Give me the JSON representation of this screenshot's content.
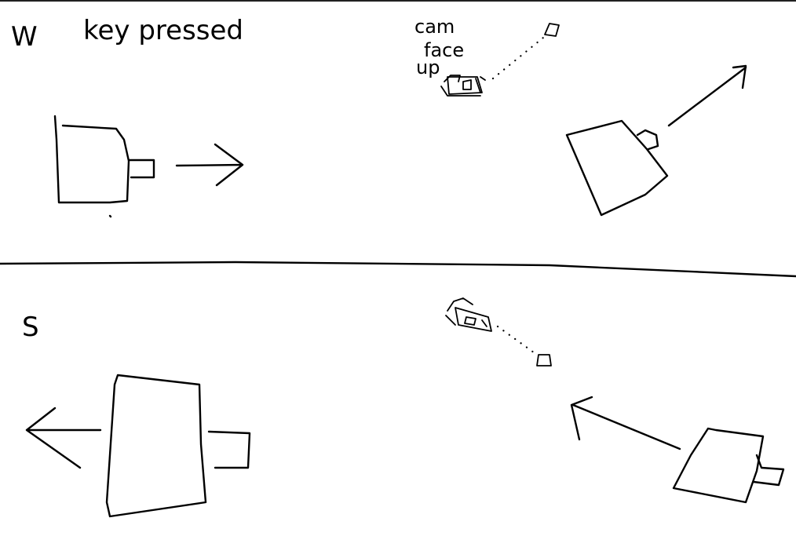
{
  "panels": {
    "top": {
      "key_letter": "W",
      "caption": "key pressed",
      "cam_label": [
        "cam",
        "face",
        "up"
      ]
    },
    "bottom": {
      "key_letter": "S"
    }
  }
}
